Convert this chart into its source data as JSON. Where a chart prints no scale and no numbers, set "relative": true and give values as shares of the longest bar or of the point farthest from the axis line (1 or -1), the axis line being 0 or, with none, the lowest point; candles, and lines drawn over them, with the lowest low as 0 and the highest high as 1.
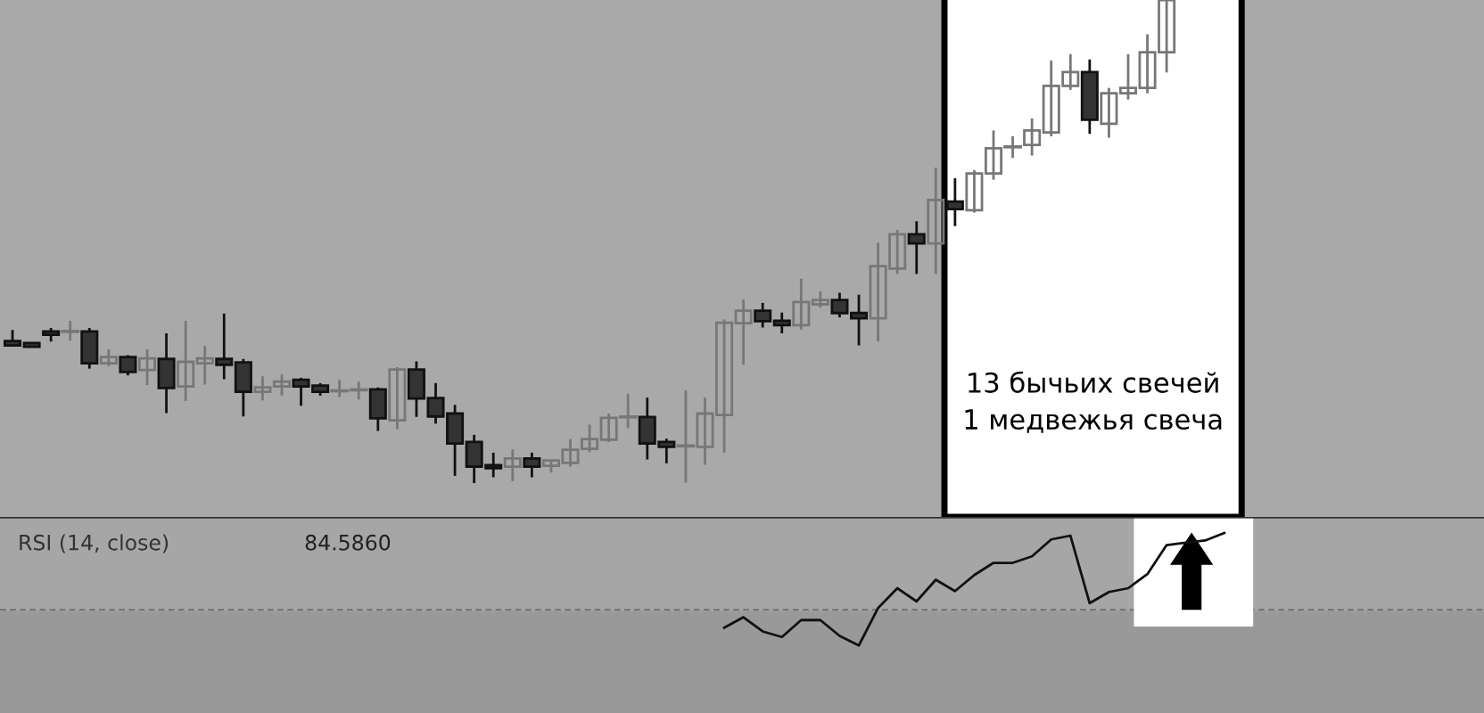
{
  "chart_data": [
    {
      "type": "candlestick",
      "relative": true,
      "categories": [
        null,
        null,
        null,
        null,
        null,
        null,
        null,
        null,
        null,
        null,
        null,
        null,
        null,
        null,
        null,
        null,
        null,
        null,
        null,
        null,
        null,
        null,
        null,
        null,
        null,
        null,
        null,
        null,
        null,
        null,
        null,
        null,
        null,
        null,
        null,
        null,
        null,
        null,
        null,
        null,
        null,
        null,
        null,
        null,
        null,
        null,
        null,
        null,
        null,
        null,
        null,
        null,
        null,
        null,
        null,
        null,
        null,
        null,
        null,
        null,
        null,
        null,
        null,
        null,
        null,
        null,
        null,
        null,
        null,
        null,
        null,
        null,
        null,
        null,
        null,
        null,
        null
      ],
      "ohlc": [
        [
          0.294,
          0.317,
          0.284,
          0.285
        ],
        [
          0.29,
          0.29,
          0.282,
          0.282
        ],
        [
          0.314,
          0.321,
          0.293,
          0.307
        ],
        [
          0.314,
          0.336,
          0.295,
          0.314
        ],
        [
          0.314,
          0.321,
          0.237,
          0.248
        ],
        [
          0.248,
          0.277,
          0.242,
          0.261
        ],
        [
          0.261,
          0.265,
          0.223,
          0.23
        ],
        [
          0.234,
          0.277,
          0.203,
          0.258
        ],
        [
          0.257,
          0.31,
          0.145,
          0.197
        ],
        [
          0.2,
          0.336,
          0.17,
          0.251
        ],
        [
          0.248,
          0.284,
          0.204,
          0.258
        ],
        [
          0.257,
          0.351,
          0.215,
          0.245
        ],
        [
          0.25,
          0.257,
          0.138,
          0.189
        ],
        [
          0.189,
          0.221,
          0.171,
          0.198
        ],
        [
          0.2,
          0.225,
          0.181,
          0.21
        ],
        [
          0.214,
          0.218,
          0.16,
          0.2
        ],
        [
          0.202,
          0.207,
          0.181,
          0.189
        ],
        [
          0.191,
          0.214,
          0.178,
          0.191
        ],
        [
          0.193,
          0.21,
          0.173,
          0.193
        ],
        [
          0.194,
          0.198,
          0.108,
          0.134
        ],
        [
          0.13,
          0.24,
          0.112,
          0.235
        ],
        [
          0.235,
          0.252,
          0.137,
          0.175
        ],
        [
          0.176,
          0.207,
          0.123,
          0.138
        ],
        [
          0.144,
          0.162,
          0.015,
          0.082
        ],
        [
          0.085,
          0.1,
          0.0,
          0.034
        ],
        [
          0.037,
          0.063,
          0.012,
          0.031
        ],
        [
          0.034,
          0.07,
          0.004,
          0.051
        ],
        [
          0.051,
          0.063,
          0.012,
          0.034
        ],
        [
          0.036,
          0.047,
          0.022,
          0.047
        ],
        [
          0.042,
          0.091,
          0.034,
          0.069
        ],
        [
          0.071,
          0.121,
          0.064,
          0.091
        ],
        [
          0.09,
          0.144,
          0.085,
          0.135
        ],
        [
          0.137,
          0.185,
          0.114,
          0.137
        ],
        [
          0.137,
          0.177,
          0.049,
          0.082
        ],
        [
          0.085,
          0.092,
          0.041,
          0.075
        ],
        [
          0.077,
          0.192,
          0.001,
          0.077
        ],
        [
          0.075,
          0.177,
          0.038,
          0.144
        ],
        [
          0.141,
          0.339,
          0.063,
          0.332
        ],
        [
          0.331,
          0.38,
          0.245,
          0.357
        ],
        [
          0.357,
          0.373,
          0.322,
          0.335
        ],
        [
          0.336,
          0.353,
          0.31,
          0.327
        ],
        [
          0.327,
          0.423,
          0.318,
          0.375
        ],
        [
          0.37,
          0.397,
          0.363,
          0.379
        ],
        [
          0.379,
          0.394,
          0.343,
          0.352
        ],
        [
          0.352,
          0.39,
          0.285,
          0.341
        ],
        [
          0.341,
          0.498,
          0.293,
          0.449
        ],
        [
          0.444,
          0.524,
          0.433,
          0.515
        ],
        [
          0.515,
          0.542,
          0.433,
          0.496
        ],
        [
          0.496,
          0.653,
          0.433,
          0.586
        ],
        [
          0.583,
          0.631,
          0.532,
          0.567
        ],
        [
          0.565,
          0.648,
          0.56,
          0.641
        ],
        [
          0.641,
          0.73,
          0.628,
          0.693
        ],
        [
          0.696,
          0.718,
          0.673,
          0.696
        ],
        [
          0.7,
          0.755,
          0.678,
          0.73
        ],
        [
          0.726,
          0.875,
          0.718,
          0.822
        ],
        [
          0.822,
          0.888,
          0.814,
          0.851
        ],
        [
          0.851,
          0.877,
          0.723,
          0.752
        ],
        [
          0.744,
          0.818,
          0.715,
          0.807
        ],
        [
          0.807,
          0.888,
          0.794,
          0.818
        ],
        [
          0.818,
          0.929,
          0.807,
          0.892
        ],
        [
          0.892,
          1.0,
          0.85,
          1.0
        ],
        null,
        null,
        null,
        null,
        null,
        null,
        null,
        null,
        null,
        null,
        null,
        null,
        null,
        null,
        null,
        null
      ],
      "annotations": [
        "13 бычьих свечей\n1 медвежья свеча"
      ]
    },
    {
      "type": "line",
      "relative": true,
      "title": "RSI (14, close)",
      "annotations": [
        "84.5860"
      ],
      "ref_lines": [
        {
          "axis": "y",
          "value": 0.574,
          "color": "#777777",
          "line_style": "dashed"
        }
      ],
      "categories": [
        null,
        null,
        null,
        null,
        null,
        null,
        null,
        null,
        null,
        null,
        null,
        null,
        null,
        null,
        null,
        null,
        null,
        null,
        null,
        null,
        null,
        null,
        null,
        null,
        null,
        null,
        null,
        null,
        null,
        null,
        null,
        null,
        null,
        null,
        null,
        null,
        null,
        null,
        null,
        null,
        null,
        null,
        null,
        null,
        null,
        null,
        null,
        null,
        null,
        null,
        null,
        null,
        null,
        null,
        null,
        null,
        null,
        null,
        null,
        null,
        null,
        null,
        null,
        null,
        null,
        null,
        null,
        null,
        null,
        null,
        null,
        null,
        null,
        null,
        null,
        null,
        null
      ],
      "series": [
        {
          "color": "#111111",
          "values": [
            null,
            null,
            null,
            null,
            null,
            null,
            null,
            null,
            null,
            null,
            null,
            null,
            null,
            null,
            null,
            null,
            null,
            null,
            null,
            null,
            null,
            null,
            null,
            null,
            null,
            null,
            null,
            null,
            null,
            null,
            null,
            null,
            null,
            null,
            null,
            null,
            null,
            0.474,
            0.532,
            0.453,
            0.422,
            0.516,
            0.516,
            0.428,
            0.375,
            0.583,
            0.693,
            0.62,
            0.74,
            0.677,
            0.766,
            0.834,
            0.834,
            0.87,
            0.964,
            0.985,
            0.61,
            0.672,
            0.693,
            0.771,
            0.933,
            0.946,
            0.958,
            1.0,
            null,
            null,
            null,
            null,
            null,
            null,
            null,
            null,
            null,
            null,
            null,
            null,
            null
          ]
        }
      ]
    }
  ]
}
